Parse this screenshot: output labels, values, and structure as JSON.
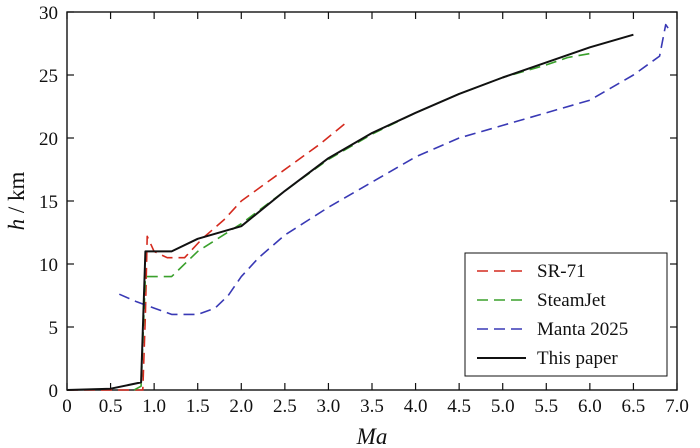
{
  "chart_data": {
    "type": "line",
    "xlabel": "Ma",
    "ylabel_var": "h",
    "ylabel_unit": " / km",
    "xlim": [
      0,
      7.0
    ],
    "ylim": [
      0,
      30
    ],
    "xticks": [
      0,
      0.5,
      1.0,
      1.5,
      2.0,
      2.5,
      3.0,
      3.5,
      4.0,
      4.5,
      5.0,
      5.5,
      6.0,
      6.5,
      7.0
    ],
    "xtick_labels": [
      "0",
      "0.5",
      "1.0",
      "1.5",
      "2.0",
      "2.5",
      "3.0",
      "3.5",
      "4.0",
      "4.5",
      "5.0",
      "5.5",
      "6.0",
      "6.5",
      "7.0"
    ],
    "yticks": [
      0,
      5,
      10,
      15,
      20,
      25,
      30
    ],
    "ytick_labels": [
      "0",
      "5",
      "10",
      "15",
      "20",
      "25",
      "30"
    ],
    "grid": false,
    "legend_position": "bottom-right",
    "series": [
      {
        "name": "SR-71",
        "color": "#d42a1e",
        "dash": "dashed",
        "x": [
          0.0,
          0.5,
          0.87,
          0.9,
          0.92,
          1.0,
          1.15,
          1.35,
          1.55,
          1.8,
          2.0,
          2.3,
          2.6,
          2.9,
          3.2
        ],
        "y": [
          0.0,
          0.0,
          0.0,
          6.0,
          12.2,
          11.0,
          10.5,
          10.5,
          12.0,
          13.5,
          15.0,
          16.5,
          18.0,
          19.5,
          21.2
        ]
      },
      {
        "name": "SteamJet",
        "color": "#3aa02c",
        "dash": "dashed",
        "x": [
          0.77,
          0.85,
          0.9,
          1.0,
          1.2,
          1.5,
          2.0,
          2.5,
          3.0,
          3.5,
          4.0,
          4.5,
          5.0,
          5.5,
          5.75,
          6.0
        ],
        "y": [
          0.0,
          0.3,
          9.0,
          9.0,
          9.0,
          11.0,
          13.2,
          15.8,
          18.3,
          20.3,
          22.0,
          23.5,
          24.8,
          25.8,
          26.4,
          26.7
        ]
      },
      {
        "name": "Manta 2025",
        "color": "#3939b5",
        "dash": "dashed",
        "x": [
          0.6,
          0.8,
          1.0,
          1.2,
          1.5,
          1.7,
          1.85,
          2.0,
          2.2,
          2.5,
          3.0,
          3.5,
          4.0,
          4.5,
          5.0,
          5.5,
          6.0,
          6.5,
          6.8,
          6.87,
          6.92
        ],
        "y": [
          7.6,
          7.0,
          6.5,
          6.0,
          6.0,
          6.5,
          7.5,
          9.0,
          10.5,
          12.3,
          14.5,
          16.5,
          18.5,
          20.0,
          21.0,
          22.0,
          23.0,
          25.0,
          26.5,
          29.0,
          28.5
        ]
      },
      {
        "name": "This paper",
        "color": "#111111",
        "dash": "solid",
        "x": [
          0.0,
          0.5,
          0.85,
          0.9,
          1.0,
          1.2,
          1.5,
          2.0,
          2.5,
          3.0,
          3.5,
          4.0,
          4.5,
          5.0,
          5.5,
          6.0,
          6.5
        ],
        "y": [
          0.0,
          0.1,
          0.6,
          11.0,
          11.0,
          11.0,
          12.0,
          13.0,
          15.8,
          18.4,
          20.4,
          22.0,
          23.5,
          24.8,
          26.0,
          27.2,
          28.2
        ]
      }
    ]
  }
}
